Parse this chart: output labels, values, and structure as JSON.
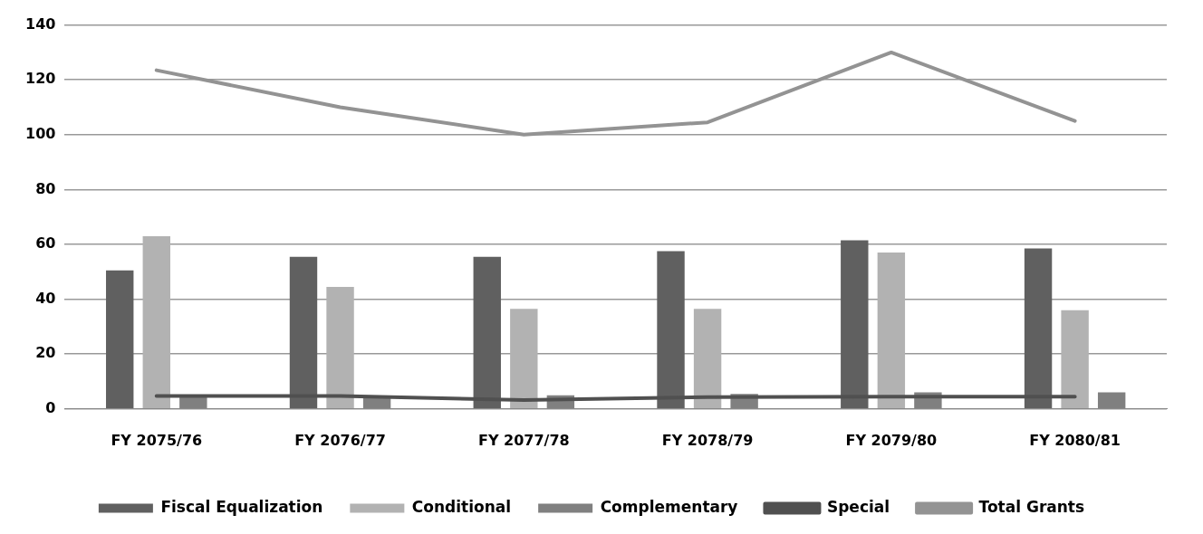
{
  "chart_data": {
    "type": "bar",
    "categories": [
      "FY 2075/76",
      "FY 2076/77",
      "FY 2077/78",
      "FY 2078/79",
      "FY 2079/80",
      "FY 2080/81"
    ],
    "series": [
      {
        "name": "Fiscal Equalization",
        "color": "#606060",
        "values": [
          50.5,
          55.5,
          55.5,
          57.5,
          61.5,
          58.5
        ]
      },
      {
        "name": "Conditional",
        "color": "#b2b2b2",
        "values": [
          63,
          44.5,
          36.5,
          36.5,
          57,
          36
        ]
      },
      {
        "name": "Complementary",
        "color": "#808080",
        "values": [
          4.2,
          4.2,
          5,
          5.5,
          6,
          6
        ]
      },
      {
        "name": "Special",
        "type": "line",
        "color": "#505050",
        "values": [
          4.7,
          4.7,
          3.2,
          4.3,
          4.5,
          4.5
        ]
      },
      {
        "name": "Total Grants",
        "type": "line",
        "color": "#939393",
        "values": [
          123.5,
          110,
          100,
          104.5,
          130,
          105
        ]
      }
    ],
    "ylim": [
      0,
      140
    ],
    "yticks": [
      0,
      20,
      40,
      60,
      80,
      100,
      120,
      140
    ],
    "grid": "y",
    "legend": "bottom",
    "marker": "none",
    "line_style": "solid"
  }
}
